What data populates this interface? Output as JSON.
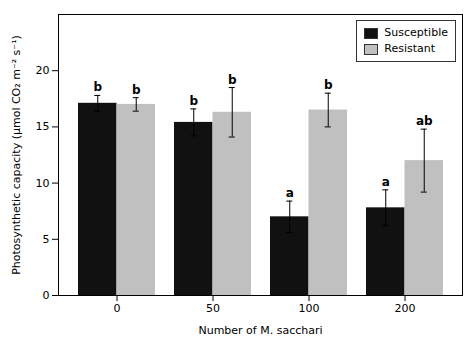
{
  "chart_data": {
    "type": "bar",
    "categories": [
      0,
      50,
      100,
      200
    ],
    "series": [
      {
        "name": "Susceptible",
        "color": "#111111",
        "values": [
          17.1,
          15.4,
          7.0,
          7.8
        ],
        "errors": [
          0.7,
          1.2,
          1.4,
          1.6
        ],
        "letters": [
          "b",
          "b",
          "a",
          "a"
        ]
      },
      {
        "name": "Resistant",
        "color": "#c0c0c0",
        "values": [
          17.0,
          16.3,
          16.5,
          12.0
        ],
        "errors": [
          0.6,
          2.2,
          1.5,
          2.8
        ],
        "letters": [
          "b",
          "b",
          "b",
          "ab"
        ]
      }
    ],
    "xlabel": "Number of M. sacchari",
    "ylabel": "Photosynthetic capacity (μmol CO₂ m⁻² s⁻¹)",
    "ylim": [
      0,
      25
    ],
    "yticks": [
      0,
      5,
      10,
      15,
      20
    ],
    "grid": false,
    "legend": "upper right"
  }
}
